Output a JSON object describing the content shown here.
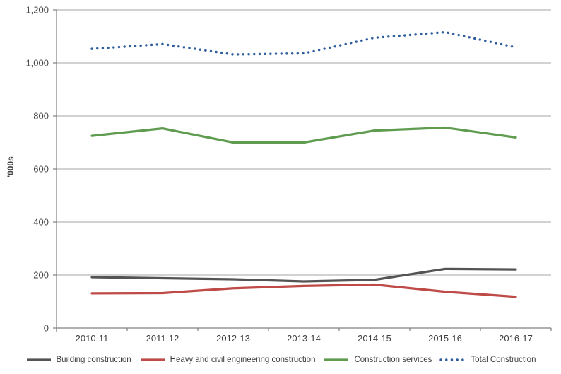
{
  "chart_data": {
    "type": "line",
    "categories": [
      "2010-11",
      "2011-12",
      "2012-13",
      "2013-14",
      "2014-15",
      "2015-16",
      "2016-17"
    ],
    "series": [
      {
        "name": "Building construction",
        "color": "#545454",
        "dash": "solid",
        "values": [
          192,
          188,
          184,
          176,
          182,
          223,
          221
        ]
      },
      {
        "name": "Heavy and civil engineering construction",
        "color": "#be4b48",
        "dash": "solid",
        "values": [
          131,
          132,
          150,
          159,
          164,
          137,
          118
        ]
      },
      {
        "name": "Construction services",
        "color": "#5f9c50",
        "dash": "solid",
        "values": [
          725,
          753,
          700,
          700,
          745,
          756,
          719
        ]
      },
      {
        "name": "Total Construction",
        "color": "#2e5e9e",
        "dash": "dotted",
        "values": [
          1053,
          1071,
          1032,
          1036,
          1095,
          1116,
          1059
        ]
      }
    ],
    "title": "",
    "xlabel": "",
    "ylabel": "'000s",
    "ylim": [
      0,
      1200
    ],
    "y_tick_values": [
      0,
      200,
      400,
      600,
      800,
      1000,
      1200
    ],
    "y_tick_labels": [
      "0",
      "200",
      "400",
      "600",
      "800",
      "1,000",
      "1,200"
    ],
    "grid": true,
    "legend_position": "bottom",
    "colors": {
      "axis_line": "#808080",
      "gridline": "#a6a6a6",
      "tick_text": "#3f3f3f"
    }
  }
}
